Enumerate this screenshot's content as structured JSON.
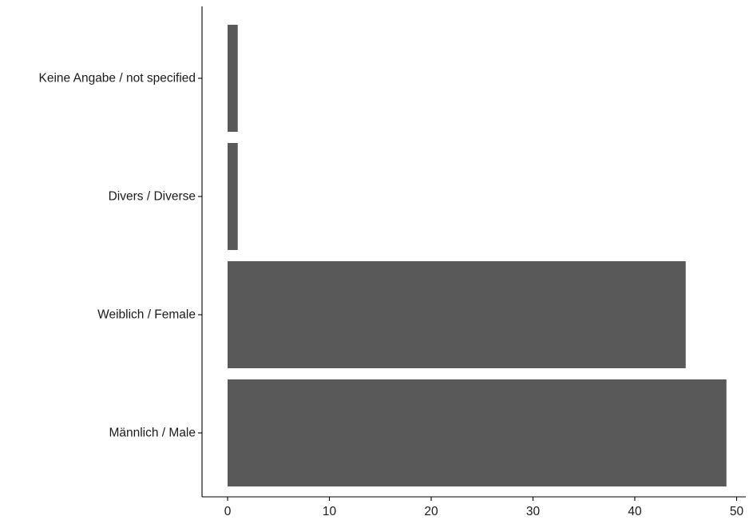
{
  "chart_data": {
    "type": "bar",
    "orientation": "horizontal",
    "categories": [
      "Männlich / Male",
      "Weiblich / Female",
      "Divers / Diverse",
      "Keine Angabe / not specified"
    ],
    "values": [
      49,
      45,
      1,
      1
    ],
    "bar_color": "#595959",
    "title": "",
    "xlabel": "",
    "ylabel": "",
    "xlim": [
      0,
      50
    ],
    "xticks": [
      0,
      10,
      20,
      30,
      40,
      50
    ],
    "grid": false,
    "legend": "none"
  }
}
